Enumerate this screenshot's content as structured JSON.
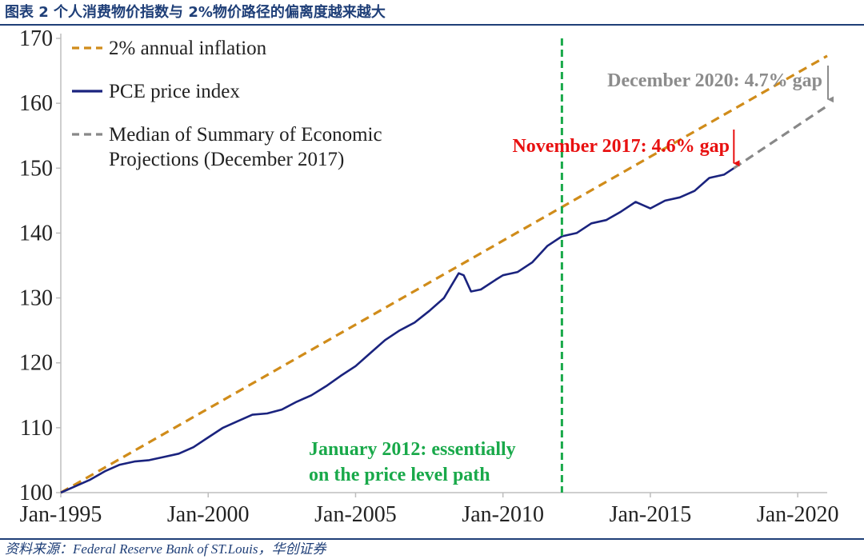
{
  "figure": {
    "title": "图表 2 个人消费物价指数与 2%物价路径的偏离度越来越大",
    "source": "资料来源：Federal Reserve Bank of ST.Louis，华创证券"
  },
  "colors": {
    "inflation": "#d08c1a",
    "pce": "#1a237e",
    "sep": "#888888",
    "vline": "#19a94a",
    "red": "#e81010",
    "grayText": "#8c8c8c",
    "axis": "#bdbdbd"
  },
  "chart_data": {
    "type": "line",
    "x_axis": {
      "type": "date",
      "range": [
        "1995-01",
        "2021-01"
      ],
      "tick_labels": [
        "Jan-1995",
        "Jan-2000",
        "Jan-2005",
        "Jan-2010",
        "Jan-2015",
        "Jan-2020"
      ],
      "tick_dates": [
        "1995-01",
        "2000-01",
        "2005-01",
        "2010-01",
        "2015-01",
        "2020-01"
      ]
    },
    "y_axis": {
      "range": [
        100,
        170
      ],
      "ticks": [
        100,
        110,
        120,
        130,
        140,
        150,
        160,
        170
      ]
    },
    "grid": false,
    "legend": {
      "placement": "top-left"
    },
    "series": [
      {
        "name": "2% annual inflation",
        "style": "dashed",
        "points": [
          [
            "1995-01",
            100.0
          ],
          [
            "2021-01",
            167.3
          ]
        ]
      },
      {
        "name": "PCE price index",
        "style": "solid",
        "points": [
          [
            "1995-01",
            100.0
          ],
          [
            "1995-07",
            101.0
          ],
          [
            "1996-01",
            102.0
          ],
          [
            "1996-07",
            103.3
          ],
          [
            "1997-01",
            104.3
          ],
          [
            "1997-07",
            104.8
          ],
          [
            "1998-01",
            105.0
          ],
          [
            "1998-07",
            105.5
          ],
          [
            "1999-01",
            106.0
          ],
          [
            "1999-07",
            107.0
          ],
          [
            "2000-01",
            108.5
          ],
          [
            "2000-07",
            110.0
          ],
          [
            "2001-01",
            111.0
          ],
          [
            "2001-07",
            112.0
          ],
          [
            "2002-01",
            112.2
          ],
          [
            "2002-07",
            112.8
          ],
          [
            "2003-01",
            114.0
          ],
          [
            "2003-07",
            115.0
          ],
          [
            "2004-01",
            116.4
          ],
          [
            "2004-07",
            118.0
          ],
          [
            "2005-01",
            119.5
          ],
          [
            "2005-07",
            121.5
          ],
          [
            "2006-01",
            123.5
          ],
          [
            "2006-07",
            125.0
          ],
          [
            "2007-01",
            126.2
          ],
          [
            "2007-07",
            128.0
          ],
          [
            "2008-01",
            130.0
          ],
          [
            "2008-07",
            133.8
          ],
          [
            "2008-09",
            133.5
          ],
          [
            "2008-12",
            131.0
          ],
          [
            "2009-04",
            131.3
          ],
          [
            "2009-10",
            132.8
          ],
          [
            "2010-01",
            133.5
          ],
          [
            "2010-07",
            134.0
          ],
          [
            "2011-01",
            135.5
          ],
          [
            "2011-07",
            138.0
          ],
          [
            "2012-01",
            139.5
          ],
          [
            "2012-07",
            140.0
          ],
          [
            "2013-01",
            141.5
          ],
          [
            "2013-07",
            142.0
          ],
          [
            "2014-01",
            143.3
          ],
          [
            "2014-07",
            144.8
          ],
          [
            "2015-01",
            143.8
          ],
          [
            "2015-07",
            145.0
          ],
          [
            "2016-01",
            145.5
          ],
          [
            "2016-07",
            146.5
          ],
          [
            "2017-01",
            148.5
          ],
          [
            "2017-07",
            149.0
          ],
          [
            "2017-11",
            150.0
          ]
        ]
      },
      {
        "name": "Median of Summary of Economic Projections (December 2017)",
        "legend_lines": [
          "Median of Summary of Economic",
          "Projections (December 2017)"
        ],
        "style": "dashed",
        "points": [
          [
            "2017-11",
            150.0
          ],
          [
            "2021-01",
            159.6
          ]
        ]
      }
    ],
    "markers": [
      {
        "type": "vertical_line",
        "x": "2012-01",
        "style": "dashed"
      }
    ],
    "annotations": [
      {
        "key": "dec2020",
        "text": "December 2020: 4.7% gap",
        "arrow": {
          "x": "2021-01",
          "y_from": 167.3,
          "y_to": 159.6
        }
      },
      {
        "key": "nov2017",
        "text": "November 2017: 4.6% gap",
        "arrow": {
          "x": "2017-11",
          "y_from": 157.0,
          "y_to": 150.0
        }
      },
      {
        "key": "jan2012",
        "text_lines": [
          "January 2012: essentially",
          "on the price level path"
        ]
      }
    ]
  }
}
